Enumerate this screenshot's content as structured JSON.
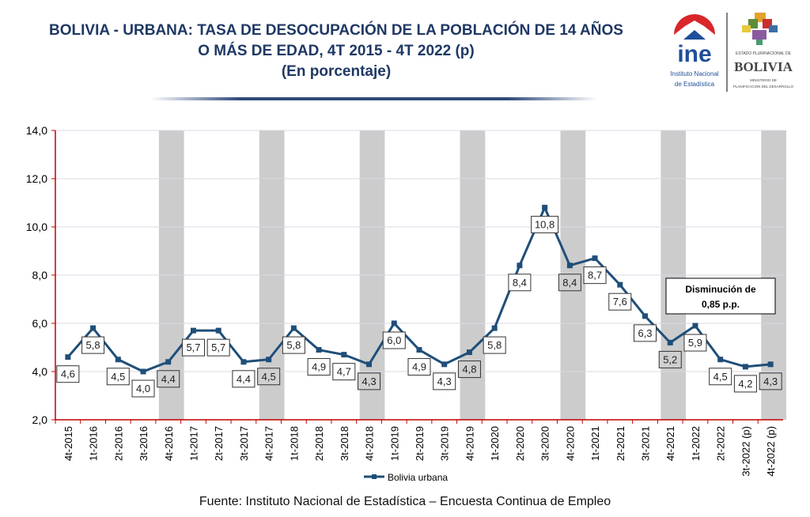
{
  "header": {
    "title_line1": "BOLIVIA - URBANA: TASA DE DESOCUPACIÓN DE LA POBLACIÓN DE 14 AÑOS",
    "title_line2": "O MÁS DE EDAD, 4T 2015 - 4T 2022 (p)",
    "title_line3": "(En porcentaje)"
  },
  "logos": {
    "ine": "ine",
    "ine_sub1": "Instituto Nacional",
    "ine_sub2": "de Estadística",
    "bolivia_top": "ESTADO PLURINACIONAL DE",
    "bolivia": "BOLIVIA",
    "ministerio1": "MINISTERIO DE",
    "ministerio2": "PLANIFICACIÓN DEL DESARROLLO"
  },
  "source": "Fuente: Instituto Nacional de Estadística – Encuesta Continua de Empleo",
  "chart_data": {
    "type": "line",
    "title": "",
    "xlabel": "",
    "ylabel": "",
    "ylim": [
      2,
      14
    ],
    "yticks": [
      "2,0",
      "4,0",
      "6,0",
      "8,0",
      "10,0",
      "12,0",
      "14,0"
    ],
    "grid": true,
    "legend_placement": "bottom",
    "highlighted_quarter": "4t",
    "series_color": "#1f4e79",
    "band_color": "#cccccc",
    "categories": [
      "4t-2015",
      "1t-2016",
      "2t-2016",
      "3t-2016",
      "4t-2016",
      "1t-2017",
      "2t-2017",
      "3t-2017",
      "4t-2017",
      "1t-2018",
      "2t-2018",
      "3t-2018",
      "4t-2018",
      "1t-2019",
      "2t-2019",
      "3t-2019",
      "4t-2019",
      "1t-2020",
      "2t-2020",
      "3t-2020",
      "4t-2020",
      "1t-2021",
      "2t-2021",
      "3t-2021",
      "4t-2021",
      "1t-2022",
      "2t-2022",
      "3t-2022 (p)",
      "4t-2022 (p)"
    ],
    "series": [
      {
        "name": "Bolivia urbana",
        "values": [
          4.6,
          5.8,
          4.5,
          4.0,
          4.4,
          5.7,
          5.7,
          4.4,
          4.5,
          5.8,
          4.9,
          4.7,
          4.3,
          6.0,
          4.9,
          4.3,
          4.8,
          5.8,
          8.4,
          10.8,
          8.4,
          8.7,
          7.6,
          6.3,
          5.2,
          5.9,
          4.5,
          4.2,
          4.3
        ]
      }
    ],
    "annotation": {
      "line1": "Disminución de",
      "line2": "0,85 p.p."
    }
  }
}
